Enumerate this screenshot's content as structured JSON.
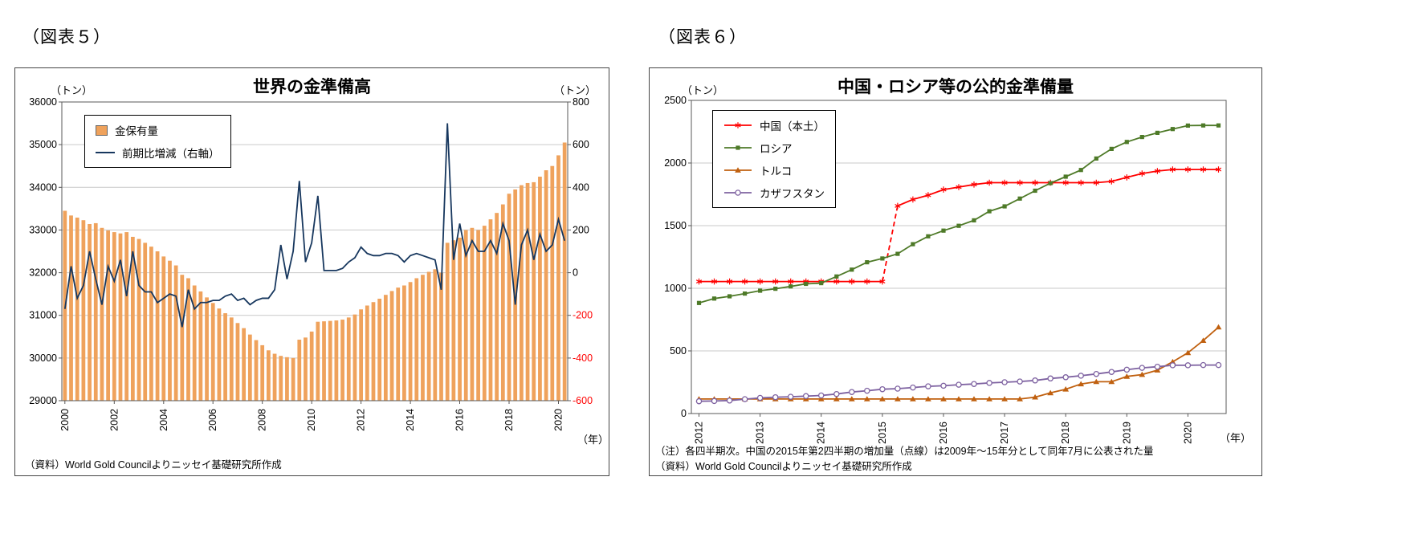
{
  "figures": {
    "fig5_label": "（図表５）",
    "fig6_label": "（図表６）"
  },
  "chart_data": [
    {
      "type": "bar+line",
      "title": "世界の金準備高",
      "source": "（資料）World Gold Councilよりニッセイ基礎研究所作成",
      "x": {
        "start_year": 2000,
        "points_per_year": 4,
        "tick_labels": [
          "2000",
          "2002",
          "2004",
          "2006",
          "2008",
          "2010",
          "2012",
          "2014",
          "2016",
          "2018",
          "2020"
        ],
        "axis_label": "（年）"
      },
      "left_axis": {
        "unit": "（トン）",
        "min": 29000,
        "max": 36000,
        "step": 1000,
        "tick_labels": [
          "29000",
          "30000",
          "31000",
          "32000",
          "33000",
          "34000",
          "35000",
          "36000"
        ]
      },
      "right_axis": {
        "unit": "（トン）",
        "min": -600,
        "max": 800,
        "step": 200,
        "tick_labels": [
          "-600",
          "-400",
          "-200",
          "0",
          "200",
          "400",
          "600",
          "800"
        ],
        "negative_label_color": "#ff0000"
      },
      "bar_series": {
        "name": "金保有量",
        "color": "#efa25c",
        "values": [
          33450,
          33340,
          33290,
          33230,
          33140,
          33160,
          33050,
          32990,
          32950,
          32920,
          32950,
          32840,
          32790,
          32700,
          32610,
          32500,
          32380,
          32280,
          32170,
          31950,
          31870,
          31700,
          31560,
          31420,
          31290,
          31160,
          31050,
          30950,
          30820,
          30700,
          30550,
          30420,
          30300,
          30180,
          30100,
          30050,
          30020,
          30000,
          30430,
          30480,
          30620,
          30850,
          30860,
          30870,
          30880,
          30900,
          30950,
          31020,
          31140,
          31230,
          31310,
          31390,
          31480,
          31570,
          31650,
          31700,
          31780,
          31870,
          31950,
          32020,
          32080,
          32000,
          32700,
          32760,
          32820,
          33000,
          33050,
          33000,
          33100,
          33250,
          33400,
          33600,
          33850,
          33950,
          34050,
          34100,
          34120,
          34250,
          34400,
          34500,
          34750,
          35050
        ]
      },
      "line_series": {
        "name": "前期比増減（右軸）",
        "color": "#17375e",
        "axis": "right",
        "values": [
          -170,
          30,
          -120,
          -60,
          100,
          -30,
          -150,
          30,
          -40,
          60,
          -110,
          100,
          -60,
          -90,
          -90,
          -140,
          -120,
          -100,
          -110,
          -255,
          -80,
          -170,
          -140,
          -140,
          -130,
          -130,
          -110,
          -100,
          -130,
          -120,
          -150,
          -130,
          -120,
          -120,
          -80,
          130,
          -30,
          100,
          430,
          50,
          140,
          360,
          10,
          10,
          10,
          20,
          50,
          70,
          120,
          90,
          80,
          80,
          90,
          90,
          80,
          50,
          80,
          90,
          80,
          70,
          60,
          -80,
          700,
          60,
          230,
          80,
          150,
          100,
          100,
          150,
          90,
          230,
          150,
          -150,
          130,
          200,
          60,
          180,
          100,
          130,
          250,
          150
        ]
      }
    },
    {
      "type": "line",
      "title": "中国・ロシア等の公的金準備量",
      "notes": [
        "（注）各四半期次。中国の2015年第2四半期の増加量（点線）は2009年～15年分として同年7月に公表された量",
        "（資料）World Gold Councilよりニッセイ基礎研究所作成"
      ],
      "x": {
        "start_year": 2012,
        "points_per_year": 4,
        "tick_labels": [
          "2012",
          "2013",
          "2014",
          "2015",
          "2016",
          "2017",
          "2018",
          "2019",
          "2020"
        ],
        "axis_label": "（年）"
      },
      "y_axis": {
        "unit": "（トン）",
        "min": 0,
        "max": 2500,
        "step": 500,
        "tick_labels": [
          "0",
          "500",
          "1000",
          "1500",
          "2000",
          "2500"
        ]
      },
      "series": [
        {
          "name": "中国（本土）",
          "color": "#ff0000",
          "marker": "asterisk",
          "dashed_segment": [
            12,
            13
          ],
          "values": [
            1054,
            1054,
            1054,
            1054,
            1054,
            1054,
            1054,
            1054,
            1054,
            1054,
            1054,
            1054,
            1054,
            1658,
            1709,
            1743,
            1788,
            1808,
            1828,
            1843,
            1843,
            1843,
            1843,
            1843,
            1843,
            1843,
            1843,
            1853,
            1885,
            1916,
            1936,
            1948,
            1948,
            1948,
            1948
          ]
        },
        {
          "name": "ロシア",
          "color": "#4e7a28",
          "marker": "square",
          "values": [
            883,
            918,
            936,
            958,
            981,
            996,
            1015,
            1035,
            1041,
            1094,
            1149,
            1208,
            1238,
            1275,
            1352,
            1415,
            1460,
            1499,
            1542,
            1615,
            1654,
            1716,
            1779,
            1839,
            1891,
            1944,
            2036,
            2113,
            2168,
            2208,
            2241,
            2271,
            2299,
            2300,
            2300
          ]
        },
        {
          "name": "トルコ",
          "color": "#c0600f",
          "marker": "triangle",
          "values": [
            116,
            116,
            116,
            116,
            116,
            116,
            116,
            116,
            116,
            116,
            116,
            116,
            116,
            116,
            116,
            116,
            116,
            116,
            116,
            116,
            116,
            116,
            131,
            165,
            194,
            236,
            254,
            254,
            296,
            311,
            346,
            413,
            485,
            583,
            690
          ]
        },
        {
          "name": "カザフスタン",
          "color": "#7e62a1",
          "marker": "circle_open",
          "values": [
            98,
            100,
            104,
            115,
            125,
            130,
            134,
            139,
            144,
            156,
            172,
            182,
            194,
            199,
            208,
            217,
            222,
            230,
            236,
            244,
            250,
            256,
            264,
            280,
            290,
            302,
            316,
            332,
            350,
            365,
            374,
            385,
            385,
            387,
            387
          ]
        }
      ]
    }
  ]
}
